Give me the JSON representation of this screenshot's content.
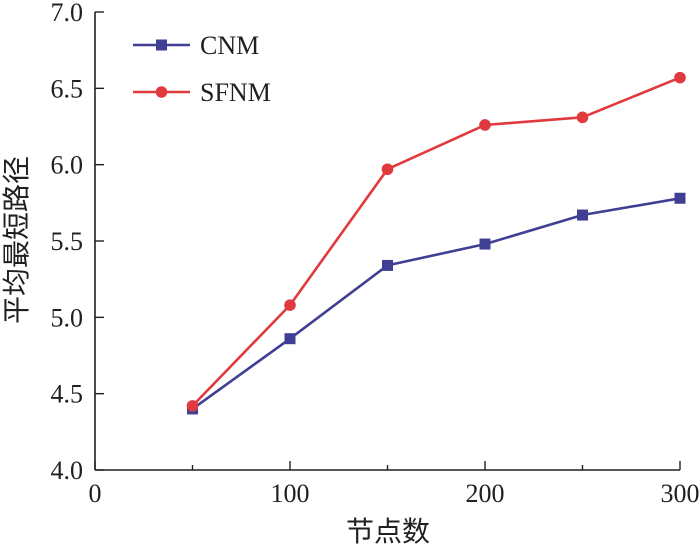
{
  "chart_data": {
    "type": "line",
    "title": "",
    "xlabel": "节点数",
    "ylabel": "平均最短路径",
    "xlim": [
      0,
      300
    ],
    "ylim": [
      4.0,
      7.0
    ],
    "xticks": [
      0,
      100,
      200,
      300
    ],
    "xtick_labels": [
      "0",
      "100",
      "200",
      "300"
    ],
    "yticks": [
      4.0,
      4.5,
      5.0,
      5.5,
      6.0,
      6.5,
      7.0
    ],
    "ytick_labels": [
      "4.0",
      "4.5",
      "5.0",
      "5.5",
      "6.0",
      "6.5",
      "7.0"
    ],
    "grid": false,
    "legend_position": "top-left",
    "x": [
      50,
      100,
      150,
      200,
      250,
      300
    ],
    "series": [
      {
        "name": "CNM",
        "color": "#3f3f94",
        "marker": "square",
        "values": [
          4.4,
          4.86,
          5.34,
          5.48,
          5.67,
          5.78
        ]
      },
      {
        "name": "SFNM",
        "color": "#e03a3e",
        "marker": "circle",
        "values": [
          4.42,
          5.08,
          5.97,
          6.26,
          6.31,
          6.57
        ]
      }
    ]
  }
}
